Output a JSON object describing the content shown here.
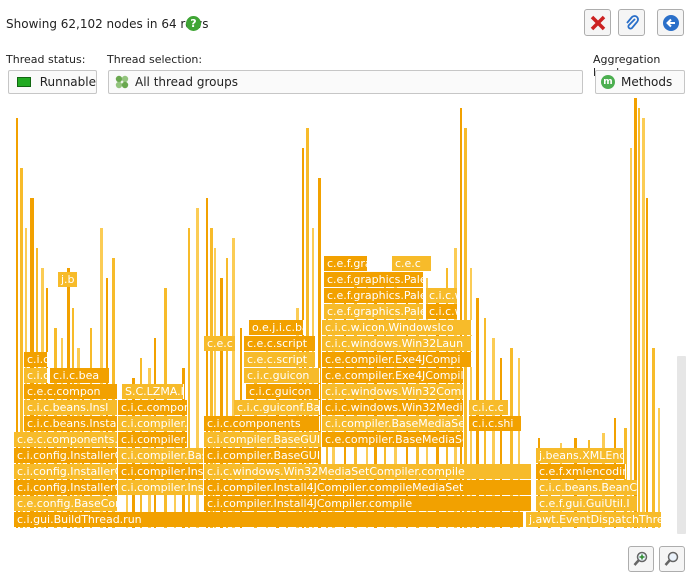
{
  "header": {
    "summary": "Showing 62,102 nodes in 64 rows",
    "help_icon": "help-question-icon",
    "buttons": [
      {
        "name": "close-button",
        "icon": "close-x-icon",
        "color": "#cc2222"
      },
      {
        "name": "attach-button",
        "icon": "paperclip-icon",
        "color": "#2a6fc9"
      },
      {
        "name": "back-button",
        "icon": "back-arrow-icon",
        "color": "#2a6fc9"
      }
    ]
  },
  "filters": {
    "thread_status": {
      "label": "Thread status:",
      "value": "Runnable",
      "indicator_color": "#22aa22"
    },
    "thread_selection": {
      "label": "Thread selection:",
      "value": "All thread groups",
      "icon": "thread-groups-icon"
    },
    "aggregation": {
      "label": "Aggregation level:",
      "value": "Methods",
      "icon": "methods-m-icon"
    }
  },
  "colors": {
    "frame_primary": "#f2a100",
    "frame_alt": "#f7bb2a",
    "frame_light": "#fbcc55"
  },
  "flame_rows": [
    [
      {
        "label": "c.i.gui.BuildThread.run"
      },
      {
        "label": "j.awt.EventDispatchThrea"
      }
    ],
    [
      {
        "label": "c.e.config.BaseCor"
      },
      {
        "label": "c.i.compiler.Install4JCompiler.compile"
      },
      {
        "label": "c.e.f.gui.GuiUtil.I"
      }
    ],
    [
      {
        "label": "c.i.config.InstallerC"
      },
      {
        "label": "c.i.compiler.Insta"
      },
      {
        "label": "c.i.compiler.Install4JCompiler.compileMediaSet"
      },
      {
        "label": "c.i.c.beans.BeanC"
      }
    ],
    [
      {
        "label": "c.i.config.InstallerC"
      },
      {
        "label": "c.i.compiler.Insta"
      },
      {
        "label": "c.i.c.windows.Win32MediaSetCompiler.compile"
      },
      {
        "label": "c.e.f.xmlencodin"
      }
    ],
    [
      {
        "label": "c.i.config.InstallerC"
      },
      {
        "label": "c.i.compiler.Bas"
      },
      {
        "label": "c.i.compiler.BaseGUIMediaSetCompiler.compile"
      },
      {
        "label": "j.beans.XMLEnc"
      }
    ],
    [
      {
        "label": "c.e.c.components."
      },
      {
        "label": "c.i.compiler."
      },
      {
        "label": "c.i.compiler.BaseGUIN"
      },
      {
        "label": "c.e.compiler.BaseMediaSe"
      }
    ],
    [
      {
        "label": "c.i.c.beans.Install"
      },
      {
        "label": "c.i.compiler."
      },
      {
        "label": "c.i.c.components"
      },
      {
        "label": "c.i.compiler.BaseMediaSe"
      },
      {
        "label": "c.i.c.shi"
      }
    ],
    [
      {
        "label": "c.i.c.beans.Insl"
      },
      {
        "label": "c.i.c.compon"
      },
      {
        "label": "c.i.c.guiconf.Bas"
      },
      {
        "label": "c.i.c.windows.Win32Media"
      },
      {
        "label": "c.i.c.c"
      }
    ],
    [
      {
        "label": "c.e.c.compon"
      },
      {
        "label": "S.C.LZMA.I"
      },
      {
        "label": "c.i.c.guicon"
      },
      {
        "label": "c.i.c.windows.Win32Comn"
      }
    ],
    [
      {
        "label": "c.i.c"
      },
      {
        "label": "c.i.c.bea"
      },
      {
        "label": "c.i.c.guicon"
      },
      {
        "label": "c.e.compiler.Exe4JCompile"
      }
    ],
    [
      {
        "label": "c.i.c"
      },
      {
        "label": "c.e.c.script"
      },
      {
        "label": "c.e.compiler.Exe4JCompi"
      }
    ],
    [
      {
        "label": "c.e.c"
      },
      {
        "label": "c.e.c.script"
      },
      {
        "label": "c.i.c.windows.Win32Laun"
      }
    ],
    [
      {
        "label": "o.e.j.i.c.ba"
      },
      {
        "label": "c.i.c.w.icon.WindowsIco"
      }
    ],
    [
      {
        "label": "c.e.f.graphics.Pale"
      },
      {
        "label": "c.i.c.w"
      }
    ],
    [
      {
        "label": "c.e.f.graphics.Pale"
      },
      {
        "label": "c.i.c.w"
      }
    ],
    [
      {
        "label": "j.b"
      },
      {
        "label": "c.e.f.graphics.Pale"
      }
    ],
    [
      {
        "label": "c.e.f.grap"
      },
      {
        "label": "c.e.c"
      }
    ]
  ],
  "zoom": {
    "zoom_in_icon": "zoom-in-icon",
    "zoom_out_icon": "zoom-out-icon"
  }
}
